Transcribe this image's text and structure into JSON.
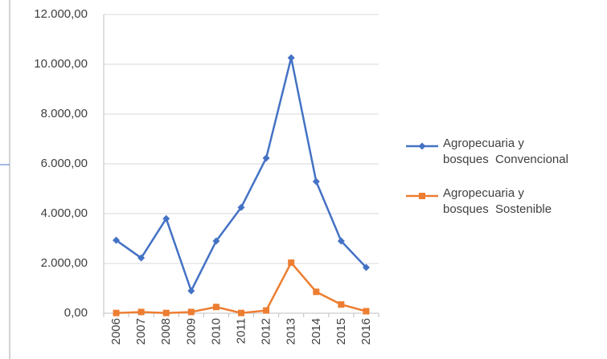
{
  "chart_data": {
    "type": "line",
    "categories": [
      "2006",
      "2007",
      "2008",
      "2009",
      "2010",
      "2011",
      "2012",
      "2013",
      "2014",
      "2015",
      "2016"
    ],
    "series": [
      {
        "name": "Agropecuaria y\nbosques  Convencional",
        "color": "#4472c4",
        "marker": "diamond",
        "values": [
          2930,
          2220,
          3800,
          900,
          2900,
          4250,
          6230,
          10260,
          5290,
          2900,
          1840
        ]
      },
      {
        "name": "Agropecuaria y\nbosques  Sostenible",
        "color": "#ed7d31",
        "marker": "square",
        "values": [
          10,
          50,
          10,
          50,
          250,
          10,
          110,
          2030,
          860,
          350,
          80
        ]
      }
    ],
    "ylim": [
      0,
      12000
    ],
    "yticks": [
      {
        "value": 0,
        "label": "0,00"
      },
      {
        "value": 2000,
        "label": "2.000,00"
      },
      {
        "value": 4000,
        "label": "4.000,00"
      },
      {
        "value": 6000,
        "label": "6.000,00"
      },
      {
        "value": 8000,
        "label": "8.000,00"
      },
      {
        "value": 10000,
        "label": "10.000,00"
      },
      {
        "value": 12000,
        "label": "12.000,00"
      }
    ],
    "grid": true,
    "legend": "right"
  }
}
